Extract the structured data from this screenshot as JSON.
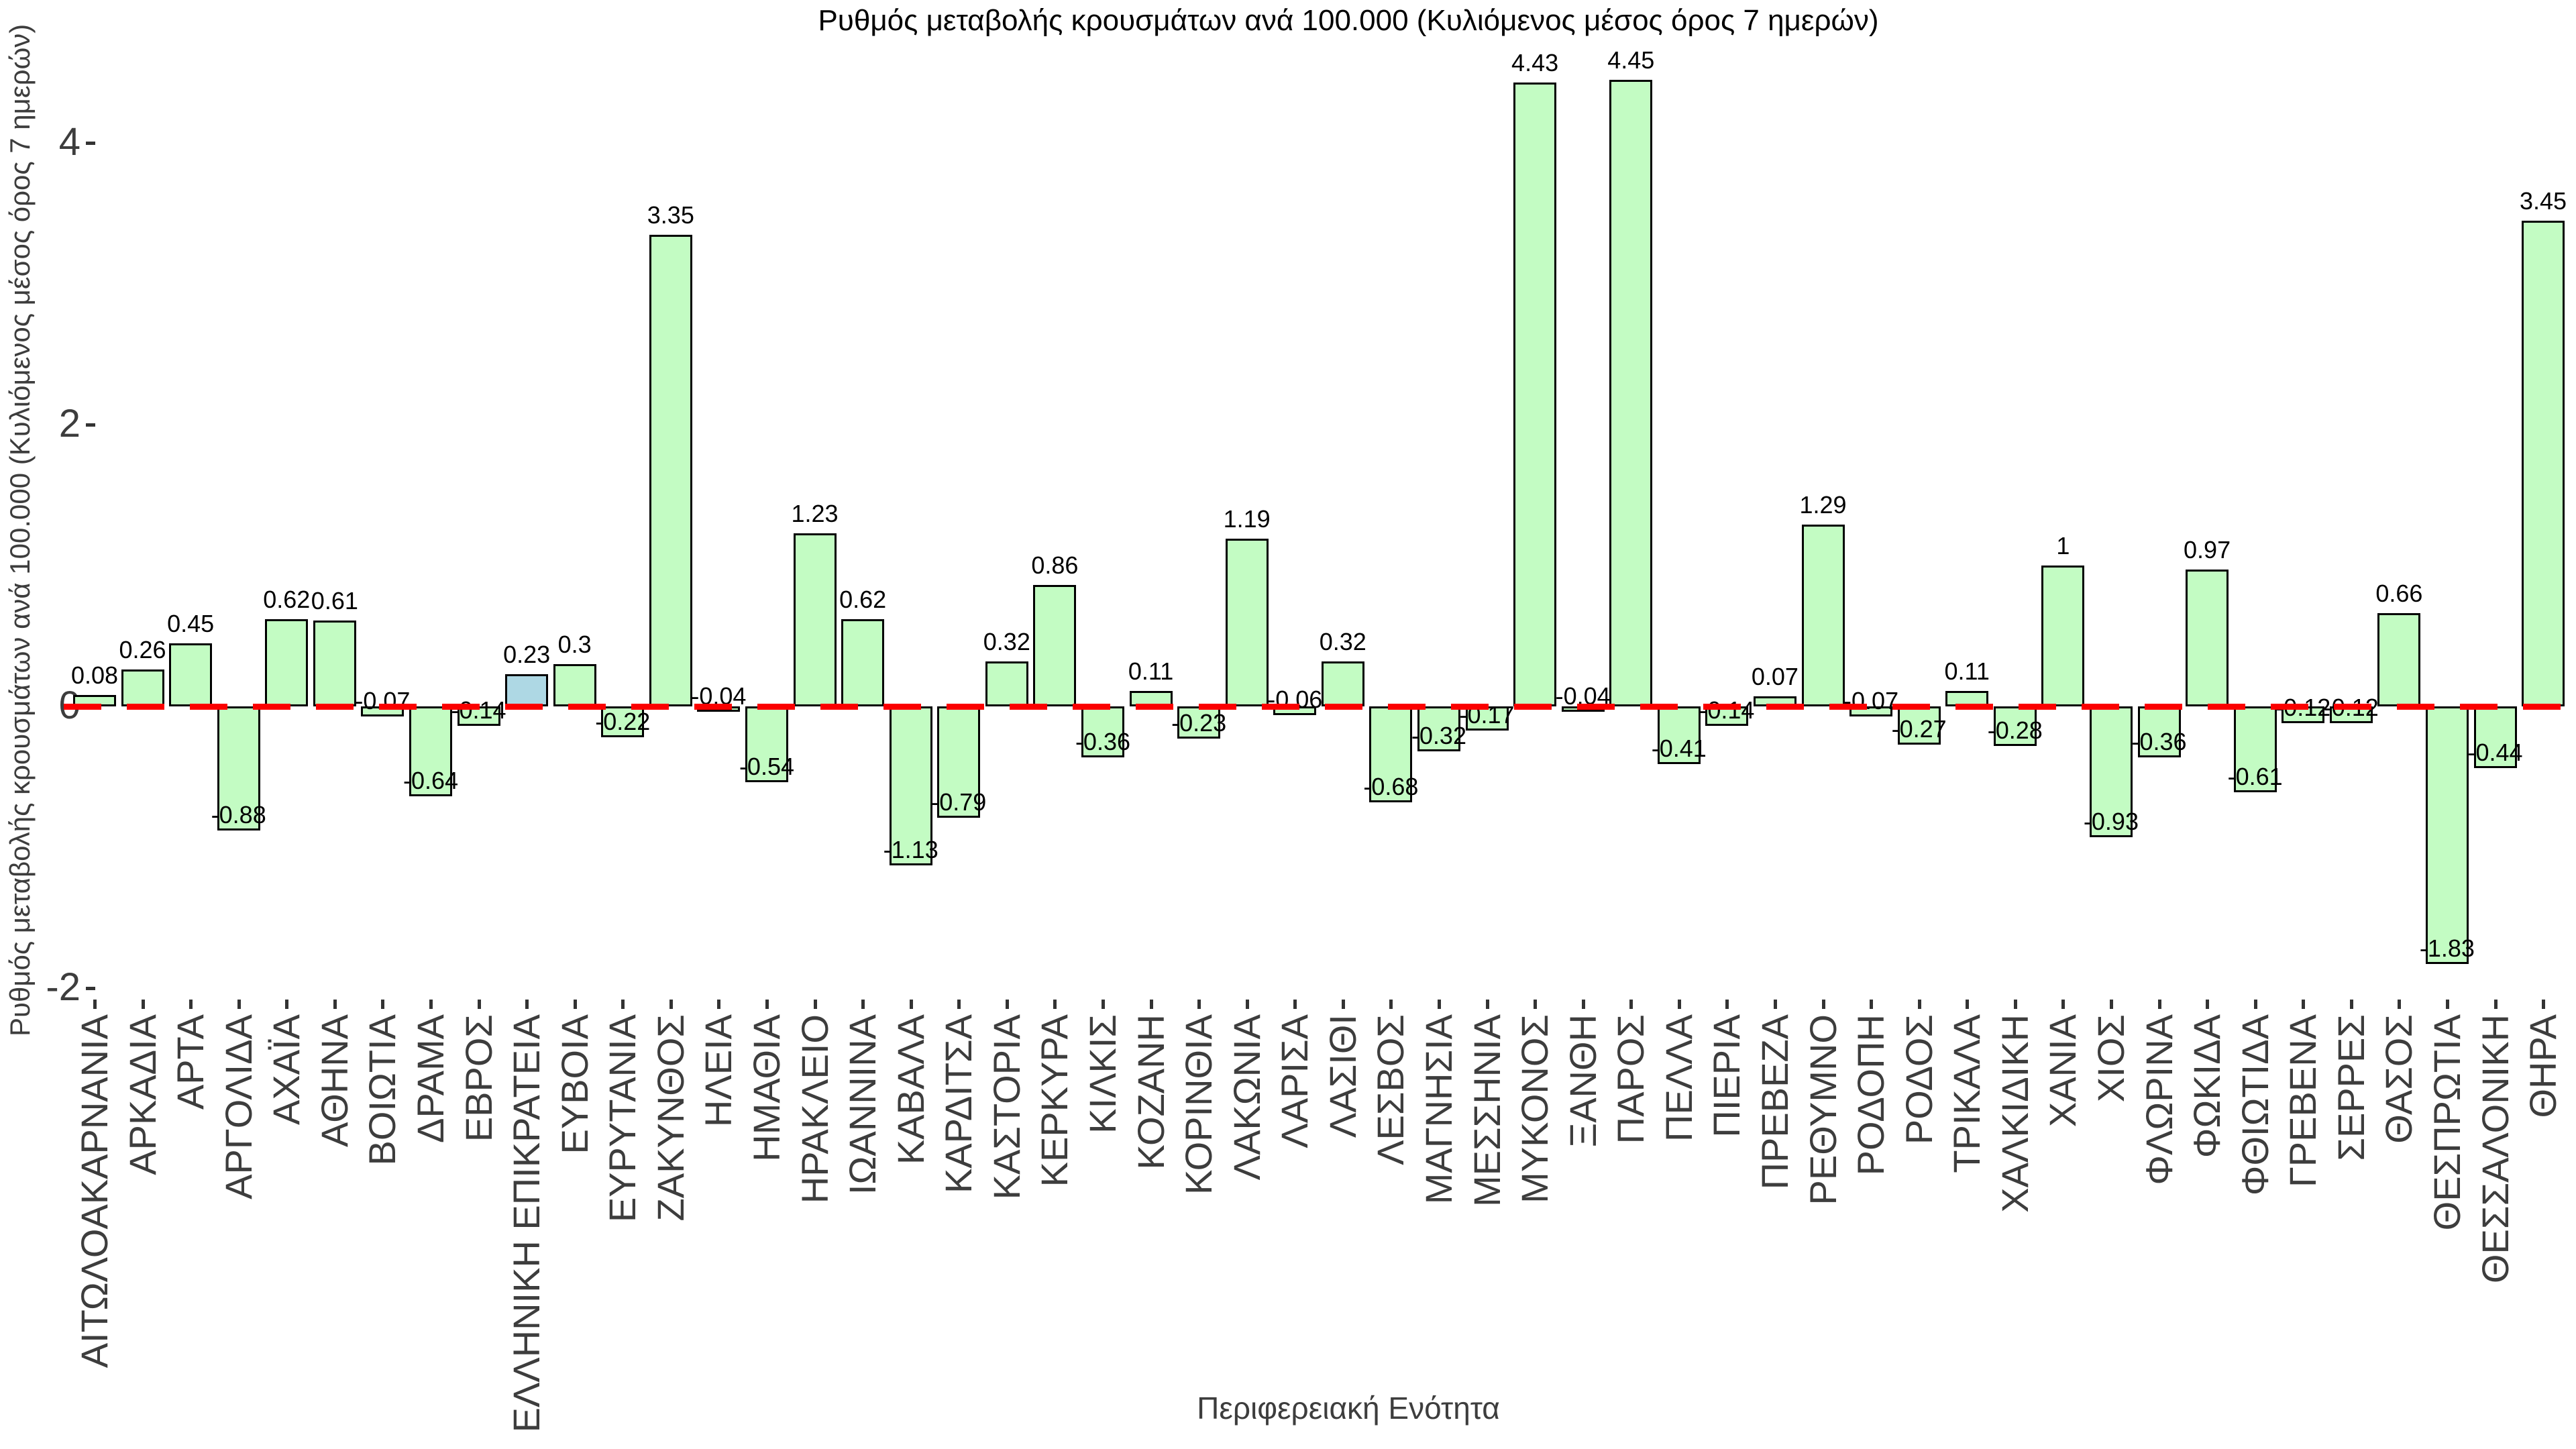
{
  "title": "Ρυθμός μεταβολής κρουσμάτων ανά 100.000 (Κυλιόμενος μέσος όρος 7 ημερών)",
  "x_axis_label": "Περιφερειακή Ενότητα",
  "y_axis_label": "Ρυθμός μεταβολής κρουσμάτων ανά 100.000 (Κυλιόμενος μέσος όρος 7 ημερών)",
  "colors": {
    "bar_fill": "#c3fcc3",
    "highlight_bar_fill": "#aed8e4",
    "bar_border": "#000000",
    "zero_line": "#fb0000",
    "tick_text": "#3d3d3d",
    "background": "#ffffff"
  },
  "chart_data": {
    "type": "bar",
    "title": "Ρυθμός μεταβολής κρουσμάτων ανά 100.000 (Κυλιόμενος μέσος όρος 7 ημερών)",
    "xlabel": "Περιφερειακή Ενότητα",
    "ylabel": "Ρυθμός μεταβολής κρουσμάτων ανά 100.000 (Κυλιόμενος μέσος όρος 7 ημερών)",
    "ylim": [
      -2.35,
      4.75
    ],
    "y_ticks": [
      4,
      2,
      0,
      -2
    ],
    "grid": false,
    "legend": "none",
    "zero_reference_line": {
      "y": 0,
      "style": "dashed",
      "color": "red"
    },
    "highlight_category": "ΕΛΛΗΝΙΚΗ ΕΠΙΚΡΑΤΕΙΑ",
    "categories": [
      "ΑΙΤΩΛΟΑΚΑΡΝΑΝΙΑ",
      "ΑΡΚΑΔΙΑ",
      "ΑΡΤΑ",
      "ΑΡΓΟΛΙΔΑ",
      "ΑΧΑΪΑ",
      "ΑΘΗΝΑ",
      "ΒΟΙΩΤΙΑ",
      "ΔΡΑΜΑ",
      "ΕΒΡΟΣ",
      "ΕΛΛΗΝΙΚΗ ΕΠΙΚΡΑΤΕΙΑ",
      "ΕΥΒΟΙΑ",
      "ΕΥΡΥΤΑΝΙΑ",
      "ΖΑΚΥΝΘΟΣ",
      "ΗΛΕΙΑ",
      "ΗΜΑΘΙΑ",
      "ΗΡΑΚΛΕΙΟ",
      "ΙΩΑΝΝΙΝΑ",
      "ΚΑΒΑΛΑ",
      "ΚΑΡΔΙΤΣΑ",
      "ΚΑΣΤΟΡΙΑ",
      "ΚΕΡΚΥΡΑ",
      "ΚΙΛΚΙΣ",
      "ΚΟΖΑΝΗ",
      "ΚΟΡΙΝΘΙΑ",
      "ΛΑΚΩΝΙΑ",
      "ΛΑΡΙΣΑ",
      "ΛΑΣΙΘΙ",
      "ΛΕΣΒΟΣ",
      "ΜΑΓΝΗΣΙΑ",
      "ΜΕΣΣΗΝΙΑ",
      "ΜΥΚΟΝΟΣ",
      "ΞΑΝΘΗ",
      "ΠΑΡΟΣ",
      "ΠΕΛΛΑ",
      "ΠΙΕΡΙΑ",
      "ΠΡΕΒΕΖΑ",
      "ΡΕΘΥΜΝΟ",
      "ΡΟΔΟΠΗ",
      "ΡΟΔΟΣ",
      "ΤΡΙΚΑΛΑ",
      "ΧΑΛΚΙΔΙΚΗ",
      "ΧΑΝΙΑ",
      "ΧΙΟΣ",
      "ΦΛΩΡΙΝΑ",
      "ΦΩΚΙΔΑ",
      "ΦΘΙΩΤΙΔΑ",
      "ΓΡΕΒΕΝΑ",
      "ΣΕΡΡΕΣ",
      "ΘΑΣΟΣ",
      "ΘΕΣΠΡΩΤΙΑ",
      "ΘΕΣΣΑΛΟΝΙΚΗ",
      "ΘΗΡΑ"
    ],
    "values": [
      0.08,
      0.26,
      0.45,
      -0.88,
      0.62,
      0.61,
      -0.07,
      -0.64,
      -0.14,
      0.23,
      0.3,
      -0.22,
      3.35,
      -0.04,
      -0.54,
      1.23,
      0.62,
      -1.13,
      -0.79,
      0.32,
      0.86,
      -0.36,
      0.11,
      -0.23,
      1.19,
      -0.06,
      0.32,
      -0.68,
      -0.32,
      -0.17,
      4.43,
      -0.04,
      4.45,
      -0.41,
      -0.14,
      0.07,
      1.29,
      -0.07,
      -0.27,
      0.11,
      -0.28,
      1,
      -0.93,
      -0.36,
      0.97,
      -0.61,
      -0.12,
      -0.12,
      0.66,
      -1.83,
      -0.44,
      3.45
    ],
    "value_labels": [
      "0.08",
      "0.26",
      "0.45",
      "-0.88",
      "0.62",
      "0.61",
      "-0.07",
      "-0.64",
      "-0.14",
      "0.23",
      "0.3",
      "-0.22",
      "3.35",
      "-0.04",
      "-0.54",
      "1.23",
      "0.62",
      "-1.13",
      "-0.79",
      "0.32",
      "0.86",
      "-0.36",
      "0.11",
      "-0.23",
      "1.19",
      "-0.06",
      "0.32",
      "-0.68",
      "-0.32",
      "-0.17",
      "4.43",
      "-0.04",
      "4.45",
      "-0.41",
      "-0.14",
      "0.07",
      "1.29",
      "-0.07",
      "-0.27",
      "0.11",
      "-0.28",
      "1",
      "-0.93",
      "-0.36",
      "0.97",
      "-0.61",
      "-0.12",
      "-0.12",
      "0.66",
      "-1.83",
      "-0.44",
      "3.45"
    ]
  }
}
